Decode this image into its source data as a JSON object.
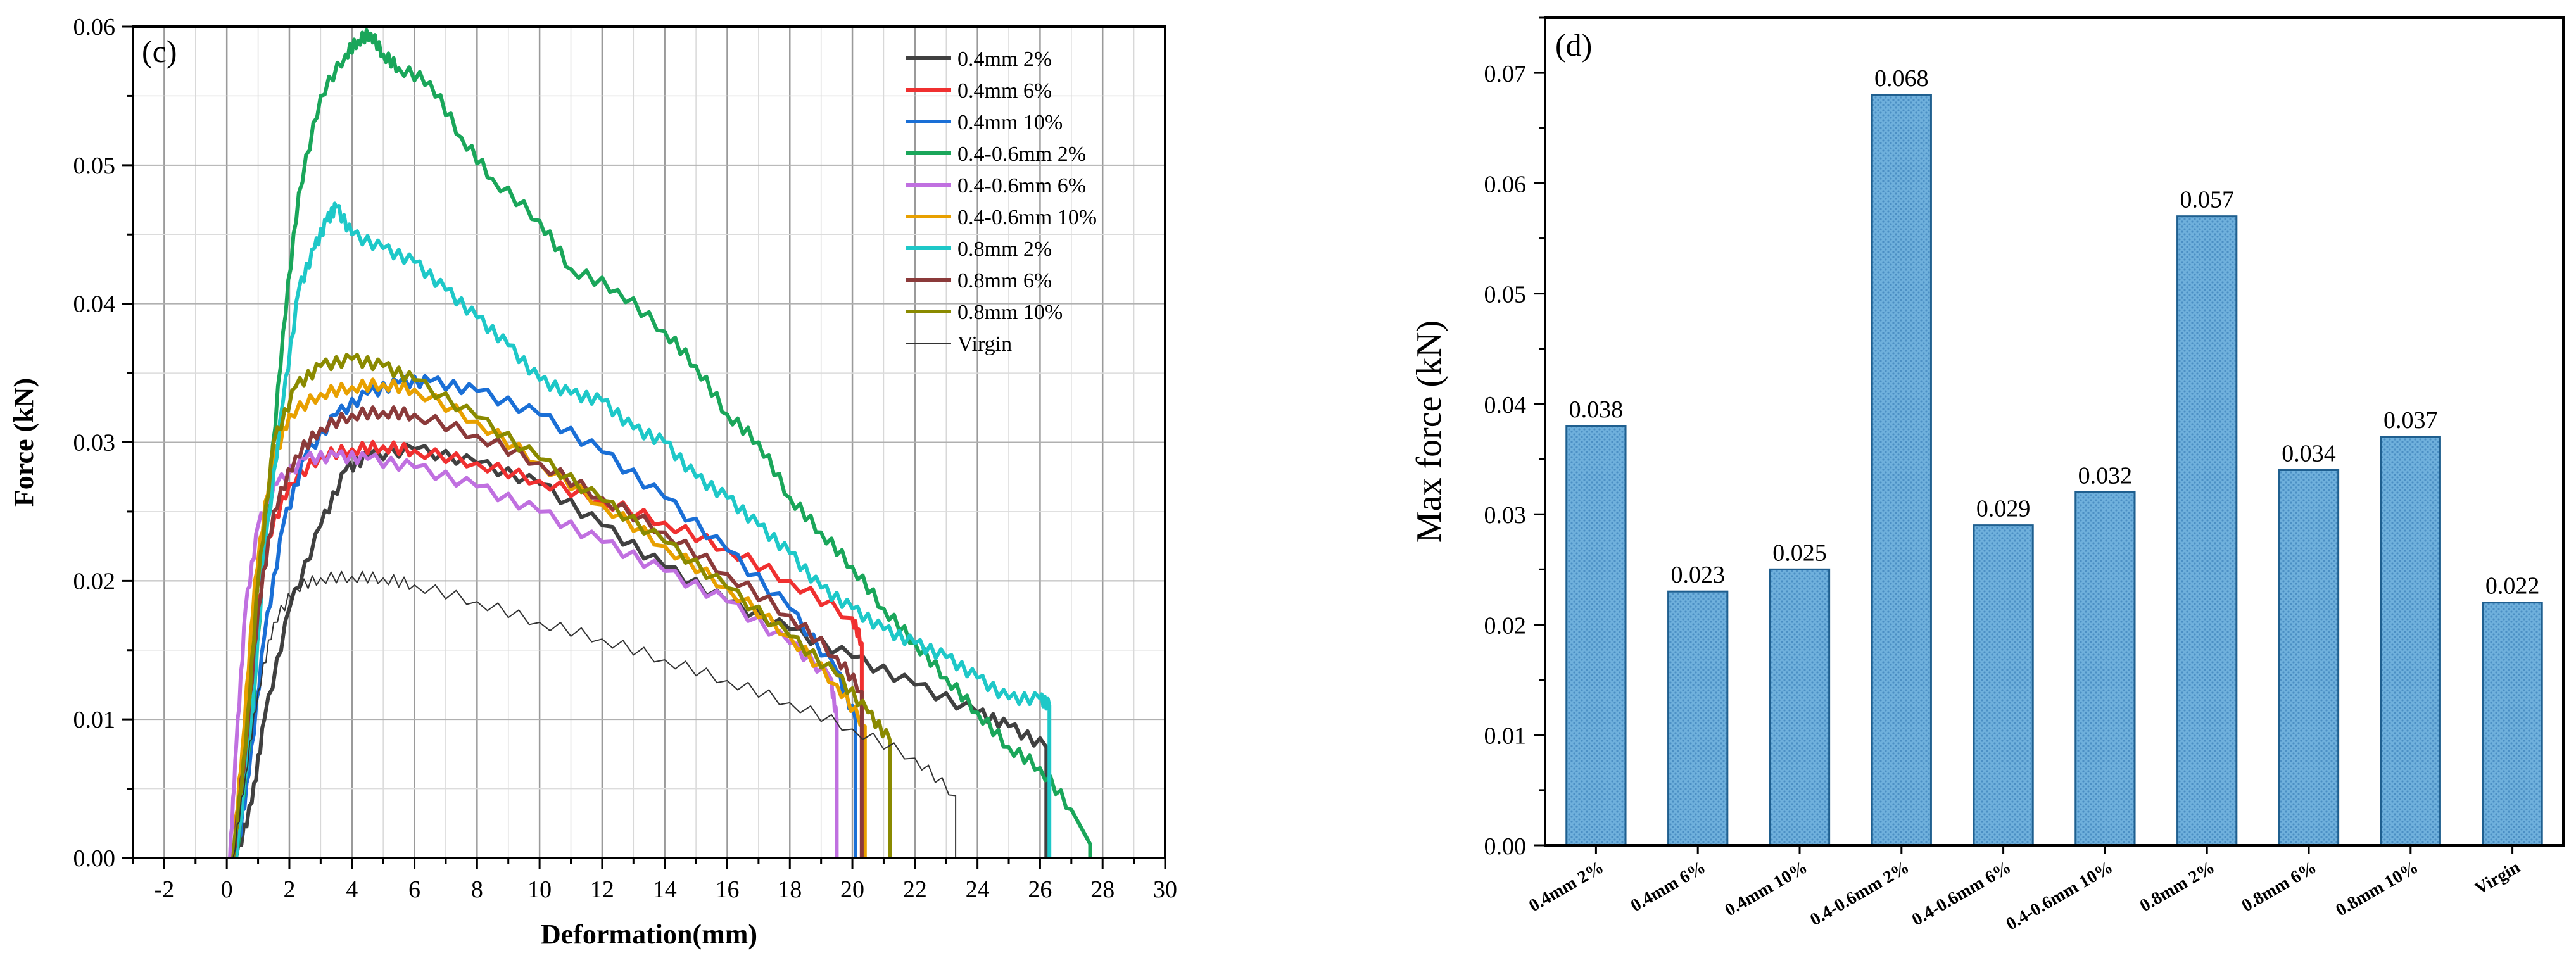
{
  "chart_data": [
    {
      "type": "line",
      "panel_label": "(c)",
      "xlabel": "Deformation(mm)",
      "ylabel": "Force (kN)",
      "xlim": [
        -3,
        30
      ],
      "ylim": [
        0,
        0.06
      ],
      "x_ticks": [
        "-2",
        "0",
        "2",
        "4",
        "6",
        "8",
        "10",
        "12",
        "14",
        "16",
        "18",
        "20",
        "22",
        "24",
        "26",
        "28",
        "30"
      ],
      "y_ticks": [
        "0.00",
        "0.01",
        "0.02",
        "0.03",
        "0.04",
        "0.05",
        "0.06"
      ],
      "grid": true,
      "legend_position": "top-right",
      "series": [
        {
          "name": "0.4mm 2%",
          "color": "#404040",
          "width": 6,
          "points": [
            [
              0.3,
              0
            ],
            [
              0.8,
              0.004
            ],
            [
              1.2,
              0.01
            ],
            [
              2,
              0.018
            ],
            [
              3,
              0.024
            ],
            [
              3.8,
              0.028
            ],
            [
              4.5,
              0.029
            ],
            [
              6,
              0.0295
            ],
            [
              8,
              0.0285
            ],
            [
              10,
              0.027
            ],
            [
              12,
              0.024
            ],
            [
              14,
              0.021
            ],
            [
              16,
              0.0185
            ],
            [
              18,
              0.0165
            ],
            [
              20,
              0.0145
            ],
            [
              22,
              0.0125
            ],
            [
              24,
              0.0105
            ],
            [
              25,
              0.0095
            ],
            [
              26.2,
              0.008
            ],
            [
              26.2,
              0
            ]
          ]
        },
        {
          "name": "0.4mm 6%",
          "color": "#f03030",
          "width": 6,
          "points": [
            [
              0.2,
              0
            ],
            [
              0.5,
              0.006
            ],
            [
              0.9,
              0.016
            ],
            [
              1.3,
              0.023
            ],
            [
              2,
              0.027
            ],
            [
              3,
              0.029
            ],
            [
              4,
              0.0295
            ],
            [
              5,
              0.0297
            ],
            [
              6,
              0.0294
            ],
            [
              8,
              0.0285
            ],
            [
              10,
              0.0272
            ],
            [
              12,
              0.0258
            ],
            [
              14,
              0.0242
            ],
            [
              16,
              0.0223
            ],
            [
              18,
              0.02
            ],
            [
              20,
              0.0173
            ],
            [
              20.3,
              0.0155
            ],
            [
              20.3,
              0
            ]
          ]
        },
        {
          "name": "0.4mm 10%",
          "color": "#1a6fd6",
          "width": 6,
          "points": [
            [
              0.3,
              0
            ],
            [
              0.7,
              0.006
            ],
            [
              1.2,
              0.016
            ],
            [
              1.8,
              0.024
            ],
            [
              2.5,
              0.029
            ],
            [
              3.5,
              0.032
            ],
            [
              4.5,
              0.0335
            ],
            [
              5.5,
              0.0343
            ],
            [
              6.5,
              0.0344
            ],
            [
              8,
              0.0337
            ],
            [
              10,
              0.032
            ],
            [
              12,
              0.0293
            ],
            [
              14,
              0.026
            ],
            [
              16,
              0.0222
            ],
            [
              18,
              0.018
            ],
            [
              19.5,
              0.0135
            ],
            [
              20.1,
              0.01
            ],
            [
              20.1,
              0
            ]
          ]
        },
        {
          "name": "0.4-0.6mm 2%",
          "color": "#1aa65a",
          "width": 6,
          "points": [
            [
              0.3,
              0
            ],
            [
              0.8,
              0.01
            ],
            [
              1.3,
              0.025
            ],
            [
              1.8,
              0.038
            ],
            [
              2.3,
              0.048
            ],
            [
              3,
              0.055
            ],
            [
              3.8,
              0.058
            ],
            [
              4.2,
              0.059
            ],
            [
              4.6,
              0.0595
            ],
            [
              5,
              0.058
            ],
            [
              5.5,
              0.057
            ],
            [
              6.5,
              0.056
            ],
            [
              7.5,
              0.052
            ],
            [
              8.5,
              0.049
            ],
            [
              10,
              0.046
            ],
            [
              11,
              0.0425
            ],
            [
              12.5,
              0.041
            ],
            [
              14,
              0.038
            ],
            [
              15,
              0.0355
            ],
            [
              16,
              0.032
            ],
            [
              17,
              0.03
            ],
            [
              18,
              0.026
            ],
            [
              19,
              0.0235
            ],
            [
              20,
              0.021
            ],
            [
              21,
              0.018
            ],
            [
              22,
              0.0155
            ],
            [
              23,
              0.013
            ],
            [
              24,
              0.0105
            ],
            [
              25,
              0.008
            ],
            [
              26,
              0.0065
            ],
            [
              27,
              0.0035
            ],
            [
              27.6,
              0.001
            ],
            [
              27.6,
              0
            ]
          ]
        },
        {
          "name": "0.4-0.6mm 6%",
          "color": "#c070e0",
          "width": 6,
          "points": [
            [
              0.1,
              0
            ],
            [
              0.3,
              0.008
            ],
            [
              0.6,
              0.018
            ],
            [
              1,
              0.024
            ],
            [
              1.6,
              0.027
            ],
            [
              2.5,
              0.0288
            ],
            [
              3.5,
              0.029
            ],
            [
              4.5,
              0.0288
            ],
            [
              6,
              0.0282
            ],
            [
              8,
              0.0268
            ],
            [
              10,
              0.025
            ],
            [
              12,
              0.0228
            ],
            [
              14,
              0.0207
            ],
            [
              16,
              0.0185
            ],
            [
              18,
              0.0155
            ],
            [
              19.3,
              0.013
            ],
            [
              19.5,
              0.01
            ],
            [
              19.5,
              0
            ]
          ]
        },
        {
          "name": "0.4-0.6mm 10%",
          "color": "#e8a000",
          "width": 6,
          "points": [
            [
              0.2,
              0
            ],
            [
              0.5,
              0.008
            ],
            [
              0.9,
              0.02
            ],
            [
              1.4,
              0.028
            ],
            [
              2,
              0.032
            ],
            [
              3,
              0.0335
            ],
            [
              4,
              0.034
            ],
            [
              5,
              0.0342
            ],
            [
              6,
              0.0338
            ],
            [
              8,
              0.0315
            ],
            [
              10,
              0.0285
            ],
            [
              12,
              0.0255
            ],
            [
              14,
              0.0225
            ],
            [
              16,
              0.0195
            ],
            [
              18,
              0.016
            ],
            [
              19.5,
              0.0125
            ],
            [
              20.4,
              0.0095
            ],
            [
              20.4,
              0
            ]
          ]
        },
        {
          "name": "0.8mm 2%",
          "color": "#1ec8c8",
          "width": 6,
          "points": [
            [
              0.3,
              0
            ],
            [
              0.8,
              0.01
            ],
            [
              1.2,
              0.022
            ],
            [
              1.8,
              0.033
            ],
            [
              2.3,
              0.041
            ],
            [
              2.8,
              0.044
            ],
            [
              3.2,
              0.046
            ],
            [
              3.5,
              0.047
            ],
            [
              4,
              0.045
            ],
            [
              5,
              0.044
            ],
            [
              6,
              0.043
            ],
            [
              7,
              0.041
            ],
            [
              8,
              0.039
            ],
            [
              9,
              0.037
            ],
            [
              10,
              0.0345
            ],
            [
              11,
              0.0335
            ],
            [
              12,
              0.033
            ],
            [
              13,
              0.031
            ],
            [
              14,
              0.03
            ],
            [
              15,
              0.0275
            ],
            [
              16,
              0.026
            ],
            [
              17,
              0.024
            ],
            [
              18,
              0.022
            ],
            [
              19,
              0.0195
            ],
            [
              20,
              0.018
            ],
            [
              21,
              0.0165
            ],
            [
              22,
              0.0155
            ],
            [
              23,
              0.0145
            ],
            [
              24,
              0.013
            ],
            [
              25,
              0.0115
            ],
            [
              26,
              0.0115
            ],
            [
              26.3,
              0.011
            ],
            [
              26.3,
              0
            ]
          ]
        },
        {
          "name": "0.8mm 6%",
          "color": "#8b3a3a",
          "width": 6,
          "points": [
            [
              0.2,
              0
            ],
            [
              0.6,
              0.008
            ],
            [
              1,
              0.018
            ],
            [
              1.5,
              0.025
            ],
            [
              2.2,
              0.029
            ],
            [
              3,
              0.031
            ],
            [
              4,
              0.032
            ],
            [
              5,
              0.0322
            ],
            [
              6,
              0.032
            ],
            [
              8,
              0.0305
            ],
            [
              10,
              0.0285
            ],
            [
              12,
              0.026
            ],
            [
              14,
              0.0235
            ],
            [
              16,
              0.0205
            ],
            [
              18,
              0.0175
            ],
            [
              19.5,
              0.0145
            ],
            [
              20.3,
              0.012
            ],
            [
              20.3,
              0
            ]
          ]
        },
        {
          "name": "0.8mm 10%",
          "color": "#8a8a00",
          "width": 6,
          "points": [
            [
              0.2,
              0
            ],
            [
              0.6,
              0.008
            ],
            [
              1,
              0.02
            ],
            [
              1.5,
              0.03
            ],
            [
              2.2,
              0.034
            ],
            [
              3,
              0.0355
            ],
            [
              4,
              0.036
            ],
            [
              5,
              0.0355
            ],
            [
              6,
              0.0345
            ],
            [
              8,
              0.0318
            ],
            [
              10,
              0.0288
            ],
            [
              12,
              0.0258
            ],
            [
              14,
              0.0228
            ],
            [
              16,
              0.0195
            ],
            [
              18,
              0.016
            ],
            [
              19.5,
              0.0132
            ],
            [
              20.5,
              0.0105
            ],
            [
              21.2,
              0.0085
            ],
            [
              21.2,
              0
            ]
          ]
        },
        {
          "name": "Virgin",
          "color": "#333333",
          "width": 2,
          "points": [
            [
              0.2,
              0
            ],
            [
              0.6,
              0.006
            ],
            [
              1,
              0.012
            ],
            [
              1.5,
              0.017
            ],
            [
              2.2,
              0.0195
            ],
            [
              3,
              0.0202
            ],
            [
              4,
              0.0203
            ],
            [
              5,
              0.0202
            ],
            [
              6,
              0.0197
            ],
            [
              8,
              0.0185
            ],
            [
              10,
              0.017
            ],
            [
              12,
              0.0158
            ],
            [
              14,
              0.0143
            ],
            [
              16,
              0.0128
            ],
            [
              18,
              0.0112
            ],
            [
              20,
              0.0093
            ],
            [
              22,
              0.0072
            ],
            [
              23.3,
              0.0045
            ],
            [
              23.3,
              0
            ]
          ]
        }
      ]
    },
    {
      "type": "bar",
      "panel_label": "(d)",
      "xlabel": "",
      "ylabel": "Max force (kN)",
      "ylim": [
        0,
        0.075
      ],
      "y_ticks": [
        "0.00",
        "0.01",
        "0.02",
        "0.03",
        "0.04",
        "0.05",
        "0.06",
        "0.07"
      ],
      "bar_color": "#6fb0dc",
      "categories": [
        "0.4mm 2%",
        "0.4mm 6%",
        "0.4mm 10%",
        "0.4-0.6mm 2%",
        "0.4-0.6mm 6%",
        "0.4-0.6mm 10%",
        "0.8mm 2%",
        "0.8mm 6%",
        "0.8mm 10%",
        "Virgin"
      ],
      "values": [
        0.038,
        0.023,
        0.025,
        0.068,
        0.029,
        0.032,
        0.057,
        0.034,
        0.037,
        0.022
      ],
      "labels": [
        "0.038",
        "0.023",
        "0.025",
        "0.068",
        "0.029",
        "0.032",
        "0.057",
        "0.034",
        "0.037",
        "0.022"
      ]
    }
  ]
}
